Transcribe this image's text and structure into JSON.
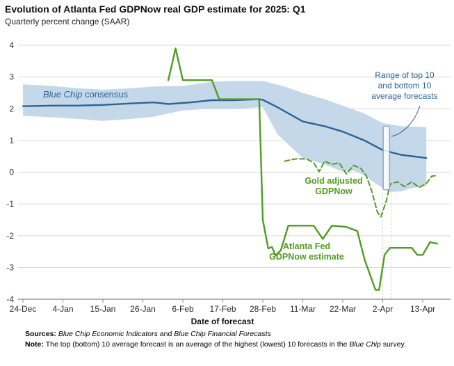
{
  "chart_data": {
    "type": "line",
    "title": "Evolution of Atlanta Fed GDPNow real GDP estimate for 2025: Q1",
    "subtitle": "Quarterly percent change (SAAR)",
    "xlabel": "Date of forecast",
    "x_unit": "days since 24-Dec-2024",
    "ylim": [
      -4,
      4
    ],
    "y_ticks": [
      -4,
      -3,
      -2,
      -1,
      0,
      1,
      2,
      3,
      4
    ],
    "x_ticks": [
      {
        "day": 0,
        "label": "24-Dec"
      },
      {
        "day": 11,
        "label": "4-Jan"
      },
      {
        "day": 22,
        "label": "15-Jan"
      },
      {
        "day": 33,
        "label": "26-Jan"
      },
      {
        "day": 44,
        "label": "6-Feb"
      },
      {
        "day": 55,
        "label": "17-Feb"
      },
      {
        "day": 66,
        "label": "28-Feb"
      },
      {
        "day": 77,
        "label": "11-Mar"
      },
      {
        "day": 88,
        "label": "22-Mar"
      },
      {
        "day": 99,
        "label": "2-Apr"
      },
      {
        "day": 110,
        "label": "13-Apr"
      }
    ],
    "band": {
      "name": "Range of top 10 and bottom 10 average forecasts",
      "color": "#c5d8ea",
      "upper": [
        [
          0,
          2.77
        ],
        [
          8,
          2.72
        ],
        [
          15,
          2.65
        ],
        [
          22,
          2.6
        ],
        [
          30,
          2.65
        ],
        [
          36,
          2.7
        ],
        [
          44,
          2.72
        ],
        [
          52,
          2.85
        ],
        [
          58,
          2.88
        ],
        [
          66,
          2.88
        ],
        [
          72,
          2.7
        ],
        [
          77,
          2.5
        ],
        [
          83,
          2.3
        ],
        [
          88,
          2.1
        ],
        [
          94,
          1.85
        ],
        [
          99,
          1.55
        ],
        [
          104,
          1.45
        ],
        [
          111,
          1.42
        ]
      ],
      "lower": [
        [
          0,
          1.78
        ],
        [
          8,
          1.73
        ],
        [
          15,
          1.68
        ],
        [
          22,
          1.62
        ],
        [
          30,
          1.68
        ],
        [
          36,
          1.75
        ],
        [
          44,
          1.95
        ],
        [
          52,
          2.0
        ],
        [
          58,
          2.0
        ],
        [
          66,
          2.05
        ],
        [
          70,
          1.2
        ],
        [
          77,
          0.45
        ],
        [
          83,
          0.25
        ],
        [
          88,
          0.02
        ],
        [
          91,
          0.05
        ],
        [
          94,
          -0.1
        ],
        [
          97,
          -0.35
        ],
        [
          99,
          -0.5
        ],
        [
          101,
          -0.62
        ],
        [
          104,
          -0.6
        ],
        [
          107,
          -0.5
        ],
        [
          111,
          -0.42
        ]
      ]
    },
    "series": [
      {
        "id": "blue-chip-consensus",
        "name": "Blue Chip consensus",
        "color": "#2a6496",
        "width": 2.4,
        "dash": null,
        "points": [
          [
            0,
            2.08
          ],
          [
            8,
            2.1
          ],
          [
            15,
            2.1
          ],
          [
            22,
            2.12
          ],
          [
            30,
            2.17
          ],
          [
            36,
            2.2
          ],
          [
            40,
            2.15
          ],
          [
            46,
            2.2
          ],
          [
            52,
            2.27
          ],
          [
            58,
            2.27
          ],
          [
            65,
            2.3
          ],
          [
            66,
            2.28
          ],
          [
            70,
            2.05
          ],
          [
            77,
            1.6
          ],
          [
            83,
            1.45
          ],
          [
            88,
            1.28
          ],
          [
            94,
            1.0
          ],
          [
            99,
            0.7
          ],
          [
            104,
            0.55
          ],
          [
            111,
            0.45
          ]
        ]
      },
      {
        "id": "atlanta-fed-gdpnow",
        "name": "Atlanta Fed GDPNow estimate",
        "color": "#4f9d1e",
        "width": 2.4,
        "dash": null,
        "points": [
          [
            40,
            2.9
          ],
          [
            42,
            3.9
          ],
          [
            44,
            2.9
          ],
          [
            52,
            2.9
          ],
          [
            54,
            2.3
          ],
          [
            65,
            2.3
          ],
          [
            66,
            -1.5
          ],
          [
            67.5,
            -2.4
          ],
          [
            68.5,
            -2.35
          ],
          [
            69.5,
            -2.62
          ],
          [
            71,
            -2.45
          ],
          [
            73,
            -1.68
          ],
          [
            80,
            -1.68
          ],
          [
            82.5,
            -2.1
          ],
          [
            85,
            -1.68
          ],
          [
            89,
            -1.72
          ],
          [
            92,
            -1.85
          ],
          [
            94,
            -2.75
          ],
          [
            97,
            -3.7
          ],
          [
            98,
            -3.7
          ],
          [
            99.5,
            -2.6
          ],
          [
            101,
            -2.38
          ],
          [
            107,
            -2.38
          ],
          [
            108.5,
            -2.6
          ],
          [
            110,
            -2.6
          ],
          [
            112,
            -2.2
          ],
          [
            114,
            -2.25
          ]
        ]
      },
      {
        "id": "gold-adjusted-gdpnow",
        "name": "Gold adjusted GDPNow",
        "color": "#4f9d1e",
        "width": 2,
        "dash": "7,4",
        "points": [
          [
            72,
            0.35
          ],
          [
            75,
            0.42
          ],
          [
            78,
            0.42
          ],
          [
            80,
            0.3
          ],
          [
            81.5,
            0.02
          ],
          [
            83,
            0.35
          ],
          [
            85,
            0.25
          ],
          [
            87,
            0.3
          ],
          [
            89,
            -0.05
          ],
          [
            91,
            0.22
          ],
          [
            93,
            0.12
          ],
          [
            94.5,
            -0.12
          ],
          [
            96,
            -0.6
          ],
          [
            97.5,
            -1.25
          ],
          [
            98.5,
            -1.4
          ],
          [
            100,
            -0.9
          ],
          [
            101,
            -0.38
          ],
          [
            103,
            -0.3
          ],
          [
            105,
            -0.45
          ],
          [
            107,
            -0.3
          ],
          [
            109,
            -0.48
          ],
          [
            111,
            -0.35
          ],
          [
            112.5,
            -0.12
          ],
          [
            114,
            -0.1
          ]
        ]
      }
    ],
    "range_marker": {
      "day": 100,
      "top": 1.45,
      "bottom": -0.55
    },
    "guide_days": [
      99,
      101.3
    ]
  },
  "annotations": {
    "blue_chip_parts": [
      {
        "t": "Blue Chip",
        "s": "i"
      },
      {
        "t": " consensus",
        "s": ""
      }
    ],
    "range_label": "Range of top 10\nand bottom 10\naverage forecasts",
    "gold_label": "Gold adjusted\nGDPNow",
    "gdpnow_label": "Atlanta Fed\nGDPNow estimate"
  },
  "footer": {
    "sources_parts": [
      {
        "t": "Sources: ",
        "s": "b"
      },
      {
        "t": "Blue Chip Economic Indicators",
        "s": "i"
      },
      {
        "t": " and ",
        "s": ""
      },
      {
        "t": "Blue Chip Financial Forecasts",
        "s": "i"
      }
    ],
    "note_parts": [
      {
        "t": "Note: ",
        "s": "b"
      },
      {
        "t": "The top (bottom) 10 average forecast is an average of the highest (lowest) 10 forecasts in the ",
        "s": ""
      },
      {
        "t": "Blue Chip",
        "s": "i"
      },
      {
        "t": " survey.",
        "s": ""
      }
    ]
  },
  "colors": {
    "blue": "#2a6496",
    "green": "#4f9d1e",
    "band": "#c5d8ea",
    "grid": "#dadada",
    "axis": "#8c8c8c"
  }
}
